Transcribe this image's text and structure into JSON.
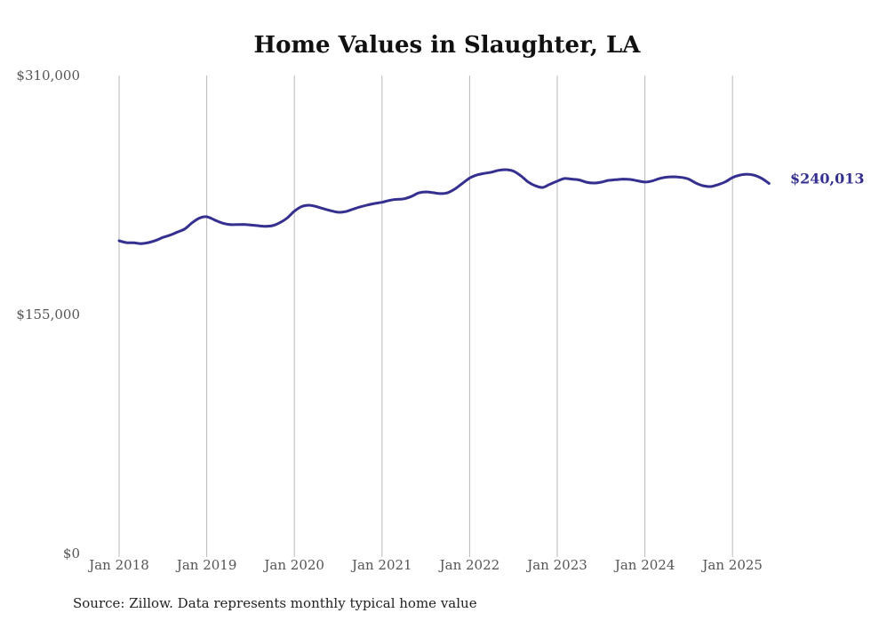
{
  "chart_data": {
    "type": "line",
    "title": "Home Values in Slaughter, LA",
    "xlabel": "",
    "ylabel": "",
    "source": "Source: Zillow. Data represents monthly typical home value",
    "ylim": [
      0,
      310000
    ],
    "yticks": [
      0,
      155000,
      310000
    ],
    "ytick_labels": [
      "$0",
      "$155,000",
      "$310,000"
    ],
    "xticks": [
      "Jan 2018",
      "Jan 2019",
      "Jan 2020",
      "Jan 2021",
      "Jan 2022",
      "Jan 2023",
      "Jan 2024",
      "Jan 2025"
    ],
    "grid": "vertical",
    "line_color": "#35308f",
    "end_label": "$240,013",
    "series": [
      {
        "name": "Typical home value",
        "start": "Jan 2018",
        "frequency": "monthly",
        "values": [
          202800,
          201600,
          201500,
          201000,
          201600,
          203000,
          205000,
          206500,
          208500,
          210500,
          214500,
          217500,
          218400,
          216500,
          214500,
          213400,
          213300,
          213400,
          213100,
          212600,
          212200,
          212600,
          214500,
          217500,
          222000,
          225000,
          225900,
          225000,
          223600,
          222300,
          221300,
          221700,
          223300,
          224800,
          226000,
          227000,
          227800,
          229000,
          229700,
          230000,
          231500,
          233800,
          234500,
          234000,
          233400,
          234000,
          236500,
          240000,
          243500,
          245500,
          246500,
          247300,
          248500,
          248900,
          248000,
          245000,
          241000,
          238500,
          237400,
          239500,
          241500,
          243200,
          242800,
          242300,
          240800,
          240300,
          240800,
          242000,
          242400,
          242800,
          242600,
          241700,
          240900,
          241600,
          243200,
          244100,
          244300,
          243900,
          242800,
          240200,
          238500,
          238000,
          239200,
          241000,
          243800,
          245400,
          246000,
          245300,
          243300,
          240013
        ]
      }
    ]
  }
}
